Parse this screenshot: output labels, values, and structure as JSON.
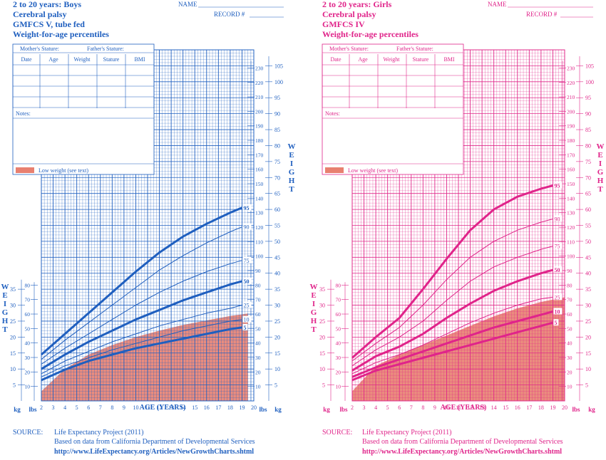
{
  "header_fields": {
    "name_label": "NAME",
    "record_label": "RECORD #"
  },
  "table": {
    "mother_stature": "Mother's Stature:",
    "father_stature": "Father's Stature:",
    "columns": [
      "Date",
      "Age",
      "Weight",
      "Stature",
      "BMI"
    ],
    "notes_label": "Notes:",
    "low_weight_label": "Low weight (see text)"
  },
  "axis_labels": {
    "weight": "W E I G H T",
    "age": "AGE (YEARS)",
    "kg": "kg",
    "lbs": "lbs"
  },
  "source": {
    "label": "SOURCE:",
    "line1": "Life Expectancy Project (2011)",
    "line2": "Based on data from California Department of Developmental Services",
    "url": "http://www.LifeExpectancy.org/Articles/NewGrowthCharts.shtml"
  },
  "colors": {
    "boys_grid": "#2060c0",
    "boys_curve": "#1f5fbf",
    "girls_grid": "#e0288a",
    "girls_curve": "#e0248a",
    "low_weight_fill": "#e88070"
  },
  "chart_data": [
    {
      "type": "line",
      "title": [
        "2 to 20 years: Boys",
        "Cerebral palsy",
        "GMFCS V, tube fed",
        "Weight-for-age percentiles"
      ],
      "xlabel": "AGE (YEARS)",
      "ylabel": "WEIGHT",
      "x_ticks": [
        2,
        3,
        4,
        5,
        6,
        7,
        8,
        9,
        10,
        11,
        12,
        13,
        14,
        15,
        16,
        17,
        18,
        19,
        20
      ],
      "xlim": [
        2,
        20
      ],
      "ylim_kg": [
        0,
        110
      ],
      "kg_ticks_left": [
        5,
        10,
        15,
        20,
        25,
        30,
        35
      ],
      "lbs_ticks_left": [
        10,
        20,
        30,
        40,
        50,
        60,
        70,
        80
      ],
      "kg_ticks_right": [
        5,
        10,
        15,
        20,
        25,
        30,
        35,
        40,
        45,
        50,
        55,
        60,
        65,
        70,
        75,
        80,
        85,
        90,
        95,
        100,
        105
      ],
      "lbs_ticks_right": [
        10,
        20,
        30,
        40,
        50,
        60,
        70,
        80,
        90,
        100,
        110,
        120,
        130,
        140,
        150,
        160,
        170,
        180,
        190,
        200,
        210,
        220,
        230
      ],
      "low_weight_region": {
        "x": [
          2,
          4,
          6,
          8,
          10,
          12,
          14,
          16,
          18,
          19.5
        ],
        "y": [
          3,
          10,
          14.5,
          17.5,
          20,
          22,
          23.8,
          25.2,
          26.6,
          27.4
        ]
      },
      "series": [
        {
          "name": "95",
          "bold": true,
          "x": [
            2,
            4,
            6,
            8,
            10,
            12,
            14,
            16,
            18,
            19
          ],
          "y": [
            14.5,
            21,
            27.5,
            34,
            40.5,
            46.5,
            51.5,
            55.5,
            59,
            60.5
          ]
        },
        {
          "name": "90",
          "bold": false,
          "x": [
            2,
            4,
            6,
            8,
            10,
            12,
            14,
            16,
            18,
            19
          ],
          "y": [
            13,
            19,
            24.5,
            30,
            35.5,
            41,
            45.5,
            49.5,
            53,
            54.5
          ]
        },
        {
          "name": "75",
          "bold": false,
          "x": [
            2,
            4,
            6,
            8,
            10,
            12,
            14,
            16,
            18,
            19
          ],
          "y": [
            11.5,
            16.5,
            21,
            25.5,
            30,
            34,
            37.5,
            40.5,
            43,
            44
          ]
        },
        {
          "name": "50",
          "bold": true,
          "x": [
            2,
            4,
            6,
            8,
            10,
            12,
            14,
            16,
            18,
            19
          ],
          "y": [
            10,
            14.5,
            18.5,
            22,
            25.5,
            28.5,
            31.5,
            34,
            36.5,
            37.5
          ]
        },
        {
          "name": "25",
          "bold": false,
          "x": [
            2,
            4,
            6,
            8,
            10,
            12,
            14,
            16,
            18,
            19
          ],
          "y": [
            8.5,
            12.5,
            15.5,
            18.5,
            21,
            23.5,
            25.5,
            27.5,
            29,
            30
          ]
        },
        {
          "name": "10",
          "bold": false,
          "x": [
            2,
            4,
            6,
            8,
            10,
            12,
            14,
            16,
            18,
            19
          ],
          "y": [
            7.5,
            11,
            13.5,
            16,
            18,
            20,
            22,
            23.5,
            25,
            25.5
          ]
        },
        {
          "name": "5",
          "bold": true,
          "x": [
            2,
            4,
            6,
            8,
            10,
            12,
            14,
            16,
            18,
            19
          ],
          "y": [
            6.5,
            9.8,
            12.5,
            14.5,
            16.5,
            18,
            19.5,
            21,
            22.5,
            23
          ]
        }
      ]
    },
    {
      "type": "line",
      "title": [
        "2 to 20 years: Girls",
        "Cerebral palsy",
        "GMFCS IV",
        "Weight-for-age percentiles"
      ],
      "xlabel": "AGE (YEARS)",
      "ylabel": "WEIGHT",
      "x_ticks": [
        2,
        3,
        4,
        5,
        6,
        7,
        8,
        9,
        10,
        11,
        12,
        13,
        14,
        15,
        16,
        17,
        18,
        19,
        20
      ],
      "xlim": [
        2,
        20
      ],
      "ylim_kg": [
        0,
        110
      ],
      "kg_ticks_left": [
        5,
        10,
        15,
        20,
        25,
        30,
        35
      ],
      "lbs_ticks_left": [
        10,
        20,
        30,
        40,
        50,
        60,
        70,
        80
      ],
      "kg_ticks_right": [
        5,
        10,
        15,
        20,
        25,
        30,
        35,
        40,
        45,
        50,
        55,
        60,
        65,
        70,
        75,
        80,
        85,
        90,
        95,
        100,
        105
      ],
      "lbs_ticks_right": [
        10,
        20,
        30,
        40,
        50,
        60,
        70,
        80,
        90,
        100,
        110,
        120,
        130,
        140,
        150,
        160,
        170,
        180,
        190,
        200,
        210,
        220,
        230
      ],
      "low_weight_region": {
        "x": [
          2,
          4,
          6,
          8,
          10,
          12,
          14,
          16,
          18,
          20
        ],
        "y": [
          3,
          11,
          14.5,
          17.5,
          20.5,
          23.5,
          26.5,
          29,
          31,
          32.5
        ]
      },
      "series": [
        {
          "name": "95",
          "bold": true,
          "x": [
            2,
            4,
            6,
            8,
            10,
            12,
            14,
            16,
            18,
            19
          ],
          "y": [
            13.5,
            20,
            26,
            35,
            44.5,
            53.5,
            60,
            64,
            66.5,
            67.5
          ]
        },
        {
          "name": "90",
          "bold": false,
          "x": [
            2,
            4,
            6,
            8,
            10,
            12,
            14,
            16,
            18,
            19
          ],
          "y": [
            12.5,
            18,
            23,
            30,
            38,
            45,
            50,
            53.5,
            56,
            57
          ]
        },
        {
          "name": "75",
          "bold": false,
          "x": [
            2,
            4,
            6,
            8,
            10,
            12,
            14,
            16,
            18,
            19
          ],
          "y": [
            11,
            16,
            20,
            25,
            31.5,
            37.5,
            42,
            45,
            47.5,
            48.5
          ]
        },
        {
          "name": "50",
          "bold": true,
          "x": [
            2,
            4,
            6,
            8,
            10,
            12,
            14,
            16,
            18,
            19
          ],
          "y": [
            9.5,
            14,
            17,
            21,
            26,
            30.5,
            34.5,
            37.5,
            40,
            41
          ]
        },
        {
          "name": "25",
          "bold": false,
          "x": [
            2,
            4,
            6,
            8,
            10,
            12,
            14,
            16,
            18,
            19
          ],
          "y": [
            8.5,
            12,
            14.5,
            17.5,
            21,
            24.5,
            27.5,
            30,
            32,
            32.5
          ]
        },
        {
          "name": "10",
          "bold": true,
          "x": [
            2,
            4,
            6,
            8,
            10,
            12,
            14,
            16,
            18,
            19
          ],
          "y": [
            7.5,
            10.5,
            13,
            15.5,
            18,
            20.5,
            23,
            25,
            27,
            28
          ]
        },
        {
          "name": "5",
          "bold": true,
          "x": [
            2,
            4,
            6,
            8,
            10,
            12,
            14,
            16,
            18,
            19
          ],
          "y": [
            6.5,
            9.5,
            11.5,
            13.5,
            15.5,
            17.5,
            19.5,
            21.5,
            23.5,
            24.5
          ]
        }
      ]
    }
  ]
}
